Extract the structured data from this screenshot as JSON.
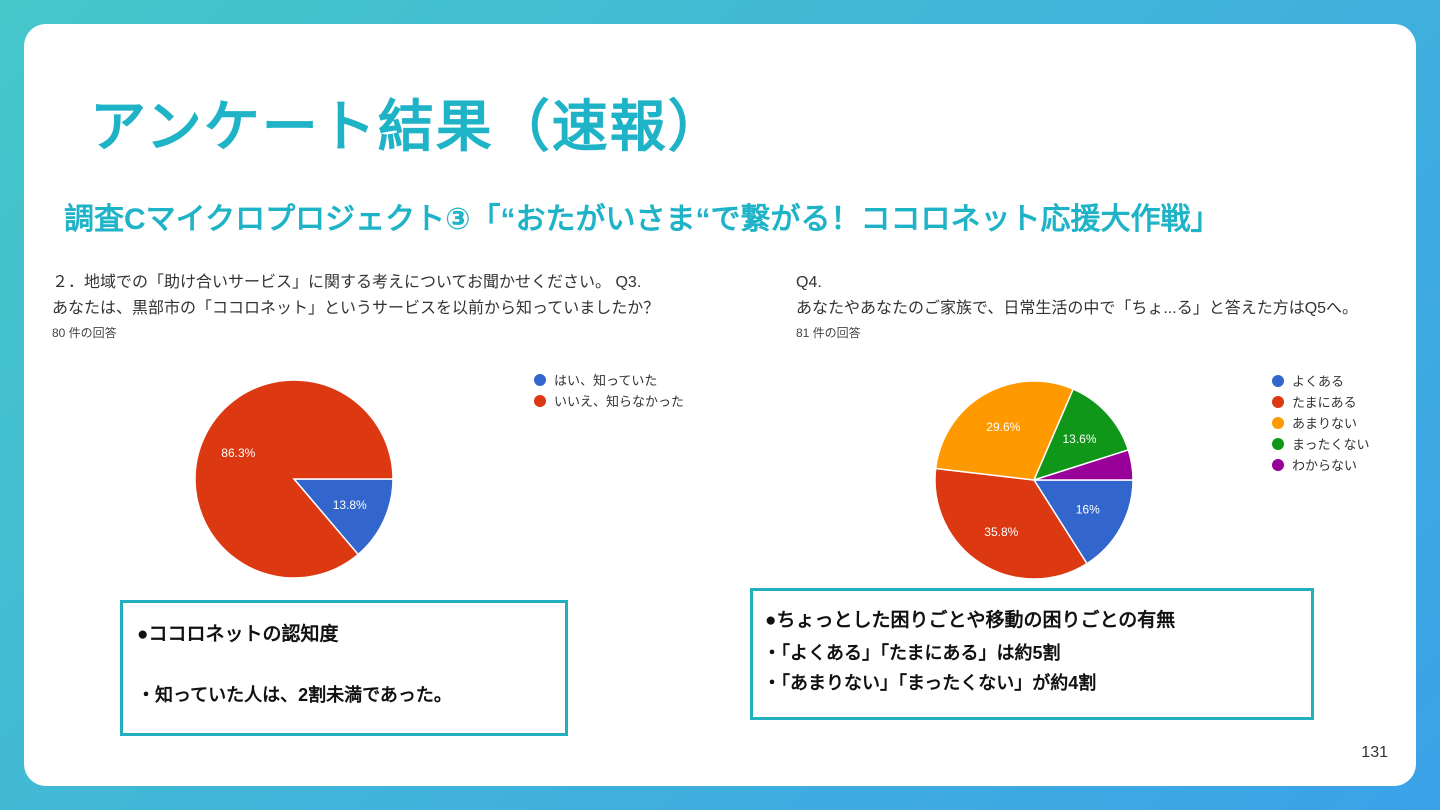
{
  "title": "アンケート結果（速報）",
  "subtitle": "調査Cマイクロプロジェクト③「“おたがいさま“で繋がる！ココロネット応援大作戦」",
  "page_number": "131",
  "left": {
    "question_line1": "２．地域での「助け合いサービス」に関する考えについてお聞かせください。 Q3.",
    "question_line2": "あなたは、黒部市の「ココロネット」というサービスを以前から知っていましたか？",
    "response_count": "80 件の回答",
    "box_heading": "●ココロネットの認知度",
    "box_line": "・知っていた人は、2割未満であった。"
  },
  "right": {
    "question_line1": "Q4.",
    "question_line2": "あなたやあなたのご家族で、日常生活の中で「ちょ...る」と答えた方はQ5へ。",
    "response_count": "81 件の回答",
    "box_heading": "●ちょっとした困りごとや移動の困りごとの有無",
    "box_line1": "・「よくある」「たまにある」は約5割",
    "box_line2": "・「あまりない」「まったくない」が約4割"
  },
  "chart_data": [
    {
      "type": "pie",
      "categories": [
        "はい、知っていた",
        "いいえ、知らなかった"
      ],
      "values": [
        13.8,
        86.3
      ],
      "labels": [
        "13.8%",
        "86.3%"
      ],
      "colors": [
        "#3366cc",
        "#dc3912"
      ],
      "legend": "right"
    },
    {
      "type": "pie",
      "categories": [
        "よくある",
        "たまにある",
        "あまりない",
        "まったくない",
        "わからない"
      ],
      "values": [
        16,
        35.8,
        29.6,
        13.6,
        4.9
      ],
      "labels": [
        "16%",
        "35.8%",
        "29.6%",
        "13.6%",
        ""
      ],
      "colors": [
        "#3366cc",
        "#dc3912",
        "#ff9900",
        "#109618",
        "#990099"
      ],
      "legend": "right"
    }
  ]
}
